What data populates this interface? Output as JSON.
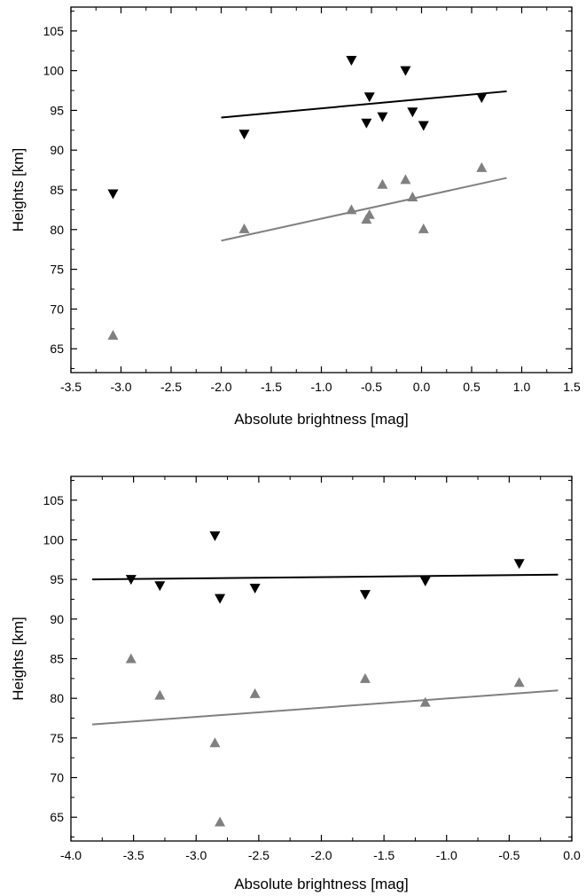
{
  "chart_data": [
    {
      "type": "scatter",
      "xlabel": "Absolute brightness [mag]",
      "ylabel": "Heights [km]",
      "xlim": [
        -3.5,
        1.5
      ],
      "ylim": [
        62,
        108
      ],
      "xticks": [
        -3.5,
        -3.0,
        -2.5,
        -2.0,
        -1.5,
        -1.0,
        -0.5,
        0.0,
        0.5,
        1.0,
        1.5
      ],
      "xtick_labels": [
        "-3.5",
        "-3.0",
        "-2.5",
        "-2.0",
        "-1.5",
        "-1.0",
        "-0.5",
        "0.0",
        "0.5",
        "1.0",
        "1.5"
      ],
      "yticks": [
        65,
        70,
        75,
        80,
        85,
        90,
        95,
        100,
        105
      ],
      "ytick_labels": [
        "65",
        "70",
        "75",
        "80",
        "85",
        "90",
        "95",
        "100",
        "105"
      ],
      "grid": false,
      "series": [
        {
          "marker": "triangle-down",
          "color": "#000000",
          "x": [
            -3.08,
            -1.77,
            -0.7,
            -0.52,
            -0.55,
            -0.39,
            -0.16,
            -0.09,
            0.02,
            0.6
          ],
          "y": [
            84.5,
            92.0,
            101.3,
            96.7,
            93.4,
            94.2,
            100.0,
            94.8,
            93.1,
            96.6
          ],
          "fit": {
            "x": [
              -2.0,
              0.85
            ],
            "y": [
              94.1,
              97.4
            ]
          }
        },
        {
          "marker": "triangle-up",
          "color": "#808080",
          "x": [
            -3.08,
            -1.77,
            -0.7,
            -0.52,
            -0.55,
            -0.39,
            -0.16,
            -0.09,
            0.02,
            0.6
          ],
          "y": [
            66.7,
            80.1,
            82.5,
            81.9,
            81.3,
            85.7,
            86.3,
            84.1,
            80.1,
            87.8
          ],
          "fit": {
            "x": [
              -2.0,
              0.85
            ],
            "y": [
              78.6,
              86.5
            ]
          }
        }
      ]
    },
    {
      "type": "scatter",
      "xlabel": "Absolute brightness [mag]",
      "ylabel": "Heights [km]",
      "xlim": [
        -4.0,
        0.0
      ],
      "ylim": [
        62,
        108
      ],
      "xticks": [
        -4.0,
        -3.5,
        -3.0,
        -2.5,
        -2.0,
        -1.5,
        -1.0,
        -0.5,
        0.0
      ],
      "xtick_labels": [
        "-4.0",
        "-3.5",
        "-3.0",
        "-2.5",
        "-2.0",
        "-1.5",
        "-1.0",
        "-0.5",
        "0.0"
      ],
      "yticks": [
        65,
        70,
        75,
        80,
        85,
        90,
        95,
        100,
        105
      ],
      "ytick_labels": [
        "65",
        "70",
        "75",
        "80",
        "85",
        "90",
        "95",
        "100",
        "105"
      ],
      "grid": false,
      "series": [
        {
          "marker": "triangle-down",
          "color": "#000000",
          "x": [
            -3.52,
            -3.29,
            -2.85,
            -2.81,
            -2.53,
            -1.65,
            -1.17,
            -0.42
          ],
          "y": [
            95.0,
            94.2,
            100.5,
            92.6,
            93.9,
            93.1,
            94.8,
            97.0
          ],
          "fit": {
            "x": [
              -3.83,
              -0.11
            ],
            "y": [
              95.0,
              95.6
            ]
          }
        },
        {
          "marker": "triangle-up",
          "color": "#808080",
          "x": [
            -3.52,
            -3.29,
            -2.85,
            -2.81,
            -2.53,
            -1.65,
            -1.17,
            -0.42
          ],
          "y": [
            85.0,
            80.4,
            74.4,
            64.4,
            80.6,
            82.5,
            79.5,
            82.0
          ],
          "fit": {
            "x": [
              -3.83,
              -0.11
            ],
            "y": [
              76.7,
              81.0
            ]
          }
        }
      ]
    }
  ]
}
